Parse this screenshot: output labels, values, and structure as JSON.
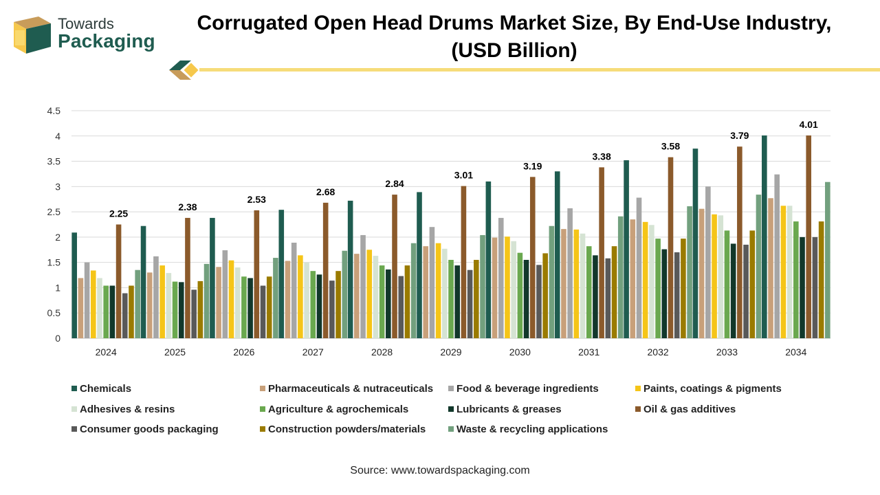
{
  "brand": {
    "line1": "Towards",
    "line2": "Packaging",
    "colors": {
      "dark": "#1f5c50",
      "gold": "#f6c84c",
      "brown": "#c89c5a"
    }
  },
  "title_line1": "Corrugated Open Head Drums Market Size, By End-Use Industry,",
  "title_line2": "(USD Billion)",
  "source": "Source: www.towardspackaging.com",
  "chart_data": {
    "type": "bar",
    "title": "Corrugated Open Head Drums Market Size, By End-Use Industry, (USD Billion)",
    "xlabel": "",
    "ylabel": "",
    "ylim": [
      0,
      4.5
    ],
    "yticks": [
      0,
      0.5,
      1,
      1.5,
      2,
      2.5,
      3,
      3.5,
      4,
      4.5
    ],
    "ytick_labels": [
      "0",
      "0.5",
      "1",
      "1.5",
      "2",
      "2.5",
      "3",
      "3.5",
      "4",
      "4.5"
    ],
    "grid": true,
    "legend_position": "bottom",
    "categories": [
      "2024",
      "2025",
      "2026",
      "2027",
      "2028",
      "2029",
      "2030",
      "2031",
      "2032",
      "2033",
      "2034"
    ],
    "series": [
      {
        "name": "Chemicals",
        "color": "#1f5c50",
        "values": [
          2.09,
          2.22,
          2.38,
          2.54,
          2.72,
          2.89,
          3.1,
          3.3,
          3.52,
          3.75,
          4.01
        ]
      },
      {
        "name": "Pharmaceuticals & nutraceuticals",
        "color": "#c8a07a",
        "values": [
          1.19,
          1.3,
          1.41,
          1.53,
          1.67,
          1.82,
          1.99,
          2.16,
          2.35,
          2.56,
          2.77
        ]
      },
      {
        "name": "Food & beverage ingredients",
        "color": "#a6a6a6",
        "values": [
          1.5,
          1.62,
          1.74,
          1.89,
          2.04,
          2.2,
          2.38,
          2.57,
          2.78,
          3.0,
          3.24
        ]
      },
      {
        "name": "Paints, coatings & pigments",
        "color": "#f5c518",
        "values": [
          1.34,
          1.44,
          1.54,
          1.64,
          1.75,
          1.88,
          2.01,
          2.15,
          2.3,
          2.45,
          2.62
        ]
      },
      {
        "name": "Adhesives & resins",
        "color": "#d5e3d3",
        "values": [
          1.19,
          1.29,
          1.4,
          1.5,
          1.63,
          1.77,
          1.92,
          2.07,
          2.24,
          2.43,
          2.62
        ]
      },
      {
        "name": "Agriculture & agrochemicals",
        "color": "#6aa84f",
        "values": [
          1.04,
          1.12,
          1.22,
          1.33,
          1.44,
          1.55,
          1.69,
          1.82,
          1.97,
          2.13,
          2.31
        ]
      },
      {
        "name": "Lubricants & greases",
        "color": "#12382b",
        "values": [
          1.04,
          1.11,
          1.19,
          1.26,
          1.36,
          1.44,
          1.55,
          1.64,
          1.76,
          1.87,
          2.0
        ]
      },
      {
        "name": "Oil & gas additives",
        "color": "#8b5a2b",
        "values": [
          2.25,
          2.38,
          2.53,
          2.68,
          2.84,
          3.01,
          3.19,
          3.38,
          3.58,
          3.79,
          4.01
        ]
      },
      {
        "name": "Consumer goods packaging",
        "color": "#595959",
        "values": [
          0.89,
          0.96,
          1.04,
          1.14,
          1.23,
          1.35,
          1.45,
          1.58,
          1.7,
          1.85,
          2.0
        ]
      },
      {
        "name": "Construction powders/materials",
        "color": "#9a7b00",
        "values": [
          1.04,
          1.13,
          1.22,
          1.33,
          1.44,
          1.55,
          1.68,
          1.82,
          1.97,
          2.13,
          2.31
        ]
      },
      {
        "name": "Waste & recycling applications",
        "color": "#72a07e",
        "values": [
          1.35,
          1.47,
          1.59,
          1.73,
          1.88,
          2.04,
          2.22,
          2.41,
          2.61,
          2.84,
          3.09
        ]
      }
    ],
    "data_labels": {
      "series": "Oil & gas additives",
      "values": [
        "2.25",
        "2.38",
        "2.53",
        "2.68",
        "2.84",
        "3.01",
        "3.19",
        "3.38",
        "3.58",
        "3.79",
        "4.01"
      ]
    }
  }
}
